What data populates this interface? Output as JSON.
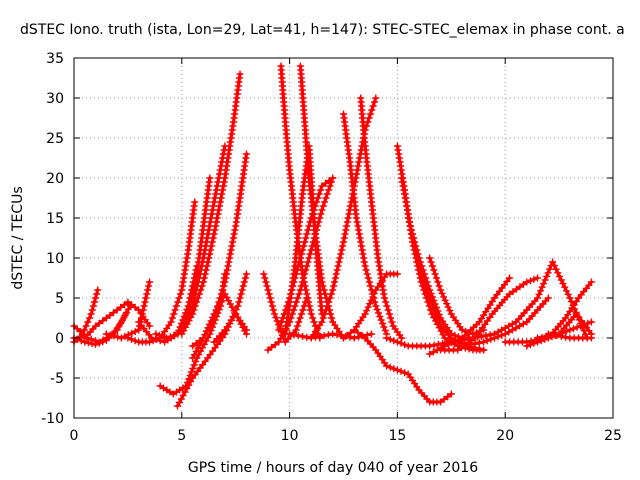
{
  "chart_data": {
    "type": "scatter",
    "title": "dSTEC Iono. truth (ista, Lon=29, Lat=41, h=147): STEC-STEC_elemax in phase cont. a",
    "xlabel": "GPS time / hours of day 040 of year 2016",
    "ylabel": "dSTEC  / TECUs",
    "xlim": [
      0,
      25
    ],
    "ylim": [
      -10,
      35
    ],
    "xticks": [
      "0",
      "5",
      "10",
      "15",
      "20",
      "25"
    ],
    "yticks": [
      "-10",
      "-5",
      "0",
      "5",
      "10",
      "15",
      "20",
      "25",
      "30",
      "35"
    ],
    "grid": true,
    "marker": "plus",
    "color": "#ff0000",
    "series": [
      {
        "x": [
          0.0,
          0.4,
          0.8,
          1.1
        ],
        "y": [
          -0.5,
          0.5,
          3.0,
          6.0
        ]
      },
      {
        "x": [
          0.0,
          0.3,
          0.6,
          1.2,
          1.8,
          2.2,
          2.6
        ],
        "y": [
          1.5,
          0.8,
          0.0,
          -0.5,
          0.5,
          2.0,
          4.0
        ]
      },
      {
        "x": [
          0.0,
          0.5,
          1.0,
          1.5,
          2.0,
          2.4
        ],
        "y": [
          0.0,
          -0.5,
          -0.8,
          -0.3,
          1.0,
          3.0
        ]
      },
      {
        "x": [
          0.5,
          1.0,
          1.5,
          2.0,
          2.5,
          3.0,
          3.5
        ],
        "y": [
          0.0,
          1.5,
          2.5,
          3.5,
          4.5,
          3.5,
          1.5
        ]
      },
      {
        "x": [
          1.5,
          2.2,
          3.0,
          3.5
        ],
        "y": [
          0.5,
          0.0,
          1.0,
          7.0
        ]
      },
      {
        "x": [
          2.5,
          3.0,
          3.5,
          4.0,
          4.5,
          5.0,
          5.3,
          5.6
        ],
        "y": [
          0.0,
          -0.5,
          -0.5,
          0.0,
          2.0,
          6.0,
          11.0,
          17.0
        ]
      },
      {
        "x": [
          3.0,
          3.6,
          4.2,
          4.8,
          5.3,
          5.7
        ],
        "y": [
          2.0,
          0.0,
          -0.5,
          0.5,
          4.0,
          9.0
        ]
      },
      {
        "x": [
          3.8,
          4.3,
          4.8,
          5.3,
          5.7,
          6.0,
          6.3
        ],
        "y": [
          0.5,
          0.0,
          0.5,
          3.5,
          8.0,
          14.0,
          20.0
        ]
      },
      {
        "x": [
          4.5,
          5.0,
          5.5,
          6.0,
          6.5,
          7.0
        ],
        "y": [
          0.0,
          1.0,
          4.0,
          10.0,
          17.0,
          24.0
        ]
      },
      {
        "x": [
          5.0,
          5.5,
          6.0,
          6.5,
          7.0,
          7.4,
          7.7
        ],
        "y": [
          0.5,
          3.0,
          7.0,
          13.0,
          20.0,
          27.0,
          33.0
        ]
      },
      {
        "x": [
          5.5,
          6.0,
          6.5,
          7.0,
          7.5,
          8.0
        ],
        "y": [
          -1.0,
          0.0,
          2.5,
          7.0,
          14.0,
          23.0
        ]
      },
      {
        "x": [
          4.0,
          4.6,
          5.2,
          5.7,
          6.3,
          6.8,
          7.0
        ],
        "y": [
          -6.0,
          -7.0,
          -6.0,
          -2.5,
          0.5,
          4.0,
          8.0
        ]
      },
      {
        "x": [
          4.8,
          5.5,
          6.2,
          7.0,
          7.6,
          8.0
        ],
        "y": [
          -8.5,
          -5.0,
          -2.5,
          0.5,
          4.0,
          8.0
        ]
      },
      {
        "x": [
          5.5,
          6.0,
          6.5,
          7.0,
          7.5,
          8.0
        ],
        "y": [
          -2.5,
          0.0,
          3.0,
          5.5,
          3.0,
          0.5
        ]
      },
      {
        "x": [
          6.5,
          7.0,
          7.5,
          8.0
        ],
        "y": [
          -0.5,
          1.0,
          3.0,
          1.0
        ]
      },
      {
        "x": [
          8.8,
          9.3,
          9.8,
          10.3,
          10.8
        ],
        "y": [
          8.0,
          3.0,
          -0.5,
          1.0,
          5.0
        ]
      },
      {
        "x": [
          9.0,
          9.5,
          10.0,
          10.5,
          11.0,
          11.5,
          12.0
        ],
        "y": [
          -1.5,
          -0.5,
          2.0,
          6.0,
          11.0,
          16.0,
          20.0
        ]
      },
      {
        "x": [
          9.5,
          10.0,
          10.5,
          11.0,
          11.5,
          12.0
        ],
        "y": [
          1.0,
          5.0,
          10.0,
          15.0,
          19.0,
          20.0
        ]
      },
      {
        "x": [
          9.6,
          9.8,
          10.0,
          10.3,
          10.6,
          11.0,
          11.4
        ],
        "y": [
          34.0,
          27.0,
          21.0,
          14.0,
          8.0,
          3.0,
          0.0
        ]
      },
      {
        "x": [
          10.5,
          10.7,
          10.9,
          11.2,
          11.5,
          12.0,
          12.5
        ],
        "y": [
          34.0,
          27.0,
          20.0,
          13.0,
          7.0,
          2.0,
          0.0
        ]
      },
      {
        "x": [
          9.8,
          10.2,
          10.6,
          10.9,
          11.2,
          11.5
        ],
        "y": [
          0.5,
          8.0,
          18.0,
          24.0,
          12.0,
          3.0
        ]
      },
      {
        "x": [
          10.0,
          11.0,
          12.0,
          13.0,
          13.8
        ],
        "y": [
          0.5,
          0.0,
          0.5,
          0.0,
          0.5
        ]
      },
      {
        "x": [
          11.0,
          11.5,
          12.0,
          12.5,
          13.0,
          13.5,
          14.0
        ],
        "y": [
          0.0,
          2.0,
          6.0,
          12.0,
          19.0,
          26.0,
          30.0
        ]
      },
      {
        "x": [
          12.5,
          12.8,
          13.1,
          13.5,
          14.0,
          14.5
        ],
        "y": [
          28.0,
          22.0,
          15.0,
          9.0,
          4.0,
          0.5
        ]
      },
      {
        "x": [
          13.3,
          13.5,
          13.8,
          14.1,
          14.4,
          14.8,
          15.2
        ],
        "y": [
          30.0,
          24.0,
          17.0,
          10.0,
          5.0,
          1.5,
          0.0
        ]
      },
      {
        "x": [
          12.5,
          13.0,
          13.5,
          14.0,
          14.5,
          15.0
        ],
        "y": [
          0.0,
          1.0,
          3.0,
          6.0,
          8.0,
          8.0
        ]
      },
      {
        "x": [
          13.0,
          13.5,
          14.0,
          14.5,
          15.0,
          15.5,
          16.0,
          16.5,
          17.0,
          17.5
        ],
        "y": [
          1.0,
          0.0,
          -1.5,
          -3.5,
          -4.0,
          -4.5,
          -6.5,
          -8.0,
          -8.0,
          -7.0
        ]
      },
      {
        "x": [
          15.0,
          15.3,
          15.7,
          16.1,
          16.6,
          17.2,
          17.8,
          18.5,
          19.0
        ],
        "y": [
          24.0,
          19.0,
          12.0,
          7.0,
          3.0,
          0.0,
          -1.0,
          -1.5,
          -1.5
        ]
      },
      {
        "x": [
          15.2,
          15.6,
          16.0,
          16.5,
          17.0,
          17.5,
          18.2,
          19.0
        ],
        "y": [
          20.0,
          14.0,
          9.0,
          5.0,
          1.5,
          0.0,
          -1.0,
          -1.5
        ]
      },
      {
        "x": [
          15.5,
          16.0,
          16.5,
          17.0,
          17.5,
          18.0,
          18.5
        ],
        "y": [
          15.0,
          10.0,
          6.0,
          2.5,
          0.5,
          0.0,
          0.0
        ]
      },
      {
        "x": [
          16.5,
          17.0,
          17.5,
          18.0,
          18.5,
          19.0
        ],
        "y": [
          10.0,
          6.0,
          3.0,
          1.0,
          0.5,
          1.0
        ]
      },
      {
        "x": [
          14.5,
          15.5,
          16.5,
          17.5,
          18.5,
          19.5
        ],
        "y": [
          0.0,
          -1.0,
          -1.0,
          -0.5,
          0.0,
          0.5
        ]
      },
      {
        "x": [
          16.5,
          17.2,
          18.0,
          18.8,
          19.5,
          20.2
        ],
        "y": [
          -2.0,
          -1.0,
          0.0,
          2.0,
          5.0,
          7.5
        ]
      },
      {
        "x": [
          17.0,
          17.8,
          18.6,
          19.4,
          20.2,
          21.0,
          21.5
        ],
        "y": [
          -1.5,
          -1.5,
          0.0,
          3.0,
          5.5,
          7.0,
          7.5
        ]
      },
      {
        "x": [
          18.0,
          19.0,
          20.0,
          21.0,
          22.0
        ],
        "y": [
          -1.0,
          -0.5,
          0.5,
          2.0,
          5.0
        ]
      },
      {
        "x": [
          19.5,
          20.5,
          21.5,
          22.2,
          23.0,
          23.8
        ],
        "y": [
          0.5,
          2.0,
          5.0,
          9.5,
          5.0,
          0.0
        ]
      },
      {
        "x": [
          20.0,
          21.0,
          22.0,
          23.0,
          24.0
        ],
        "y": [
          -0.5,
          -0.5,
          0.0,
          1.0,
          2.0
        ]
      },
      {
        "x": [
          21.0,
          22.0,
          22.8,
          23.4,
          24.0
        ],
        "y": [
          -1.0,
          0.0,
          2.5,
          5.0,
          7.0
        ]
      },
      {
        "x": [
          21.5,
          22.5,
          23.3,
          24.0
        ],
        "y": [
          0.0,
          0.5,
          3.0,
          0.5
        ]
      },
      {
        "x": [
          22.0,
          23.0,
          24.0
        ],
        "y": [
          0.5,
          0.0,
          0.0
        ]
      }
    ]
  }
}
